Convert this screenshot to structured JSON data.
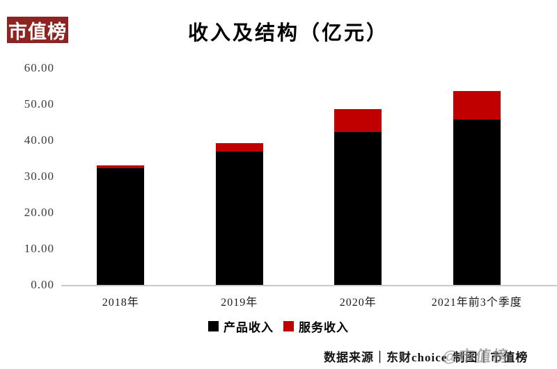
{
  "brand": {
    "logo_text": "市值榜"
  },
  "chart_data": {
    "type": "bar",
    "stacked": true,
    "title": "收入及结构（亿元）",
    "categories": [
      "2018年",
      "2019年",
      "2020年",
      "2021年前3个季度"
    ],
    "series": [
      {
        "name": "产品收入",
        "color": "#000000",
        "values": [
          32.3,
          37.0,
          42.4,
          45.7
        ]
      },
      {
        "name": "服务收入",
        "color": "#c00000",
        "values": [
          0.7,
          2.3,
          6.2,
          7.9
        ]
      }
    ],
    "totals": [
      33.0,
      39.3,
      48.6,
      53.6
    ],
    "xlabel": "",
    "ylabel": "",
    "ylim": [
      0,
      60
    ],
    "ytick_labels": [
      "60.00",
      "50.00",
      "40.00",
      "30.00",
      "20.00",
      "10.00",
      "0.00"
    ],
    "grid": false,
    "legend_position": "bottom"
  },
  "footer": {
    "source": "数据来源｜东财choice",
    "credit": "制图｜市值榜",
    "watermark": "@市值榜"
  },
  "colors": {
    "brand_red": "#8c2522",
    "bar_black": "#000000",
    "bar_red": "#c00000",
    "axis_line": "#c9c9c9"
  }
}
